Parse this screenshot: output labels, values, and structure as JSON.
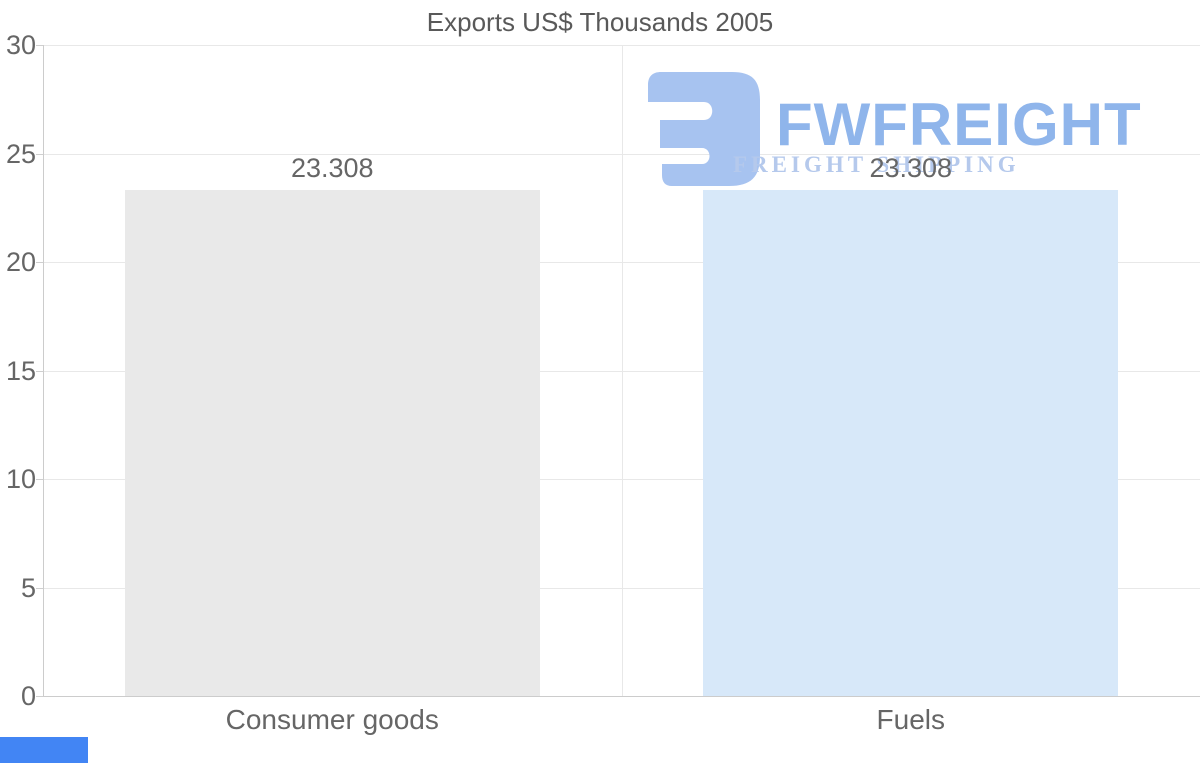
{
  "title": "Exports US$ Thousands 2005",
  "watermark": {
    "brand": "FWFREIGHT",
    "tagline": "FREIGHT SHIPPING"
  },
  "chart_data": {
    "type": "bar",
    "title": "Exports US$ Thousands 2005",
    "categories": [
      "Consumer goods",
      "Fuels"
    ],
    "values": [
      23.308,
      23.308
    ],
    "value_labels": [
      "23.308",
      "23.308"
    ],
    "bar_colors": [
      "#e9e9e9",
      "#d7e8f9"
    ],
    "ylim": [
      0,
      30
    ],
    "yticks": [
      0,
      5,
      10,
      15,
      20,
      25,
      30
    ],
    "grid": true,
    "legend_position": "none",
    "xlabel": "",
    "ylabel": ""
  },
  "colors": {
    "title_text": "#595959",
    "axis_text": "#666666",
    "gridline": "#e8e8e8",
    "axis_line": "#cccccc",
    "bar_consumer_goods": "#e9e9e9",
    "bar_fuels": "#d7e8f9",
    "logo_icon": "#a7c3f0",
    "logo_brand_text": "#8fb5eb",
    "logo_tagline_text": "#b5c9ec",
    "bottom_left_element": "#4285f4"
  }
}
